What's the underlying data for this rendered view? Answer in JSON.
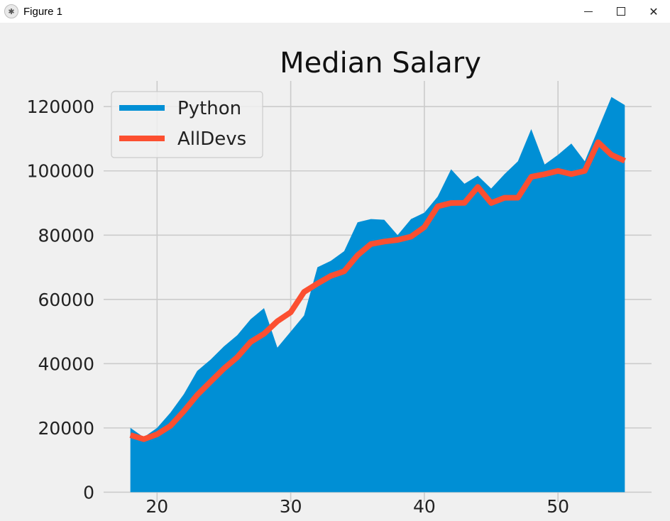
{
  "window": {
    "title": "Figure 1",
    "icons": [
      "figure-app-icon",
      "minimize-icon",
      "maximize-icon",
      "close-icon"
    ]
  },
  "colors": {
    "background": "#f0f0f0",
    "grid": "#cbcbcb",
    "python": "#008fd5",
    "alldevs": "#fc4f30"
  },
  "chart_data": {
    "type": "area",
    "title": "Median Salary",
    "xlabel": "",
    "ylabel": "",
    "xlim": [
      16,
      57
    ],
    "ylim": [
      -3000,
      128000
    ],
    "xticks": [
      20,
      30,
      40,
      50
    ],
    "yticks": [
      0,
      20000,
      40000,
      60000,
      80000,
      100000,
      120000
    ],
    "grid": true,
    "legend": "top-left",
    "x": [
      18,
      19,
      20,
      21,
      22,
      23,
      24,
      25,
      26,
      27,
      28,
      29,
      30,
      31,
      32,
      33,
      34,
      35,
      36,
      37,
      38,
      39,
      40,
      41,
      42,
      43,
      44,
      45,
      46,
      47,
      48,
      49,
      50,
      51,
      52,
      53,
      54,
      55
    ],
    "series": [
      {
        "name": "Python",
        "style": "filled-area",
        "values": [
          20046,
          17100,
          20000,
          24744,
          30500,
          37732,
          41247,
          45372,
          48876,
          53850,
          57287,
          45000,
          50000,
          55000,
          70000,
          72000,
          75000,
          84000,
          85000,
          84800,
          80000,
          85000,
          87000,
          92000,
          100500,
          96000,
          98500,
          94500,
          99000,
          103000,
          113000,
          102000,
          105000,
          108500,
          103000,
          113000,
          123000,
          120500
        ]
      },
      {
        "name": "AllDevs",
        "style": "line",
        "values": [
          17784,
          16500,
          18012,
          20628,
          25206,
          30252,
          34368,
          38496,
          42000,
          46752,
          49320,
          53200,
          56000,
          62316,
          64928,
          67317,
          68748,
          73752,
          77232,
          78000,
          78508,
          79536,
          82488,
          88935,
          90000,
          90056,
          95000,
          90000,
          91633,
          91660,
          98150,
          98964,
          100000,
          98988,
          100000,
          108923,
          105000,
          103117
        ]
      }
    ]
  }
}
